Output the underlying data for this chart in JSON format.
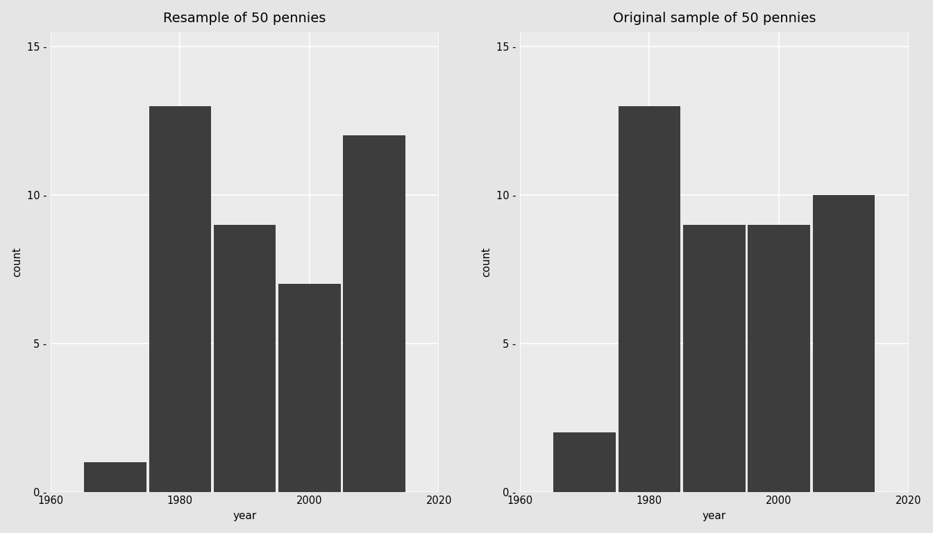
{
  "left_title": "Resample of 50 pennies",
  "right_title": "Original sample of 50 pennies",
  "xlabel": "year",
  "ylabel": "count",
  "bar_color": "#3d3d3d",
  "panel_bg_color": "#EBEBEB",
  "outer_bg_color": "#E5E5E5",
  "grid_color": "#FFFFFF",
  "xlim": [
    1960,
    2020
  ],
  "ylim": [
    0,
    15.5
  ],
  "yticks": [
    0,
    5,
    10,
    15
  ],
  "xticks": [
    1960,
    1980,
    2000,
    2020
  ],
  "bins": [
    1965,
    1975,
    1985,
    1995,
    2005,
    2015
  ],
  "bin_width": 10,
  "left_counts": [
    1,
    13,
    9,
    7,
    12
  ],
  "right_counts": [
    2,
    13,
    9,
    9,
    10
  ],
  "title_fontsize": 14,
  "axis_label_fontsize": 11,
  "tick_fontsize": 10.5
}
